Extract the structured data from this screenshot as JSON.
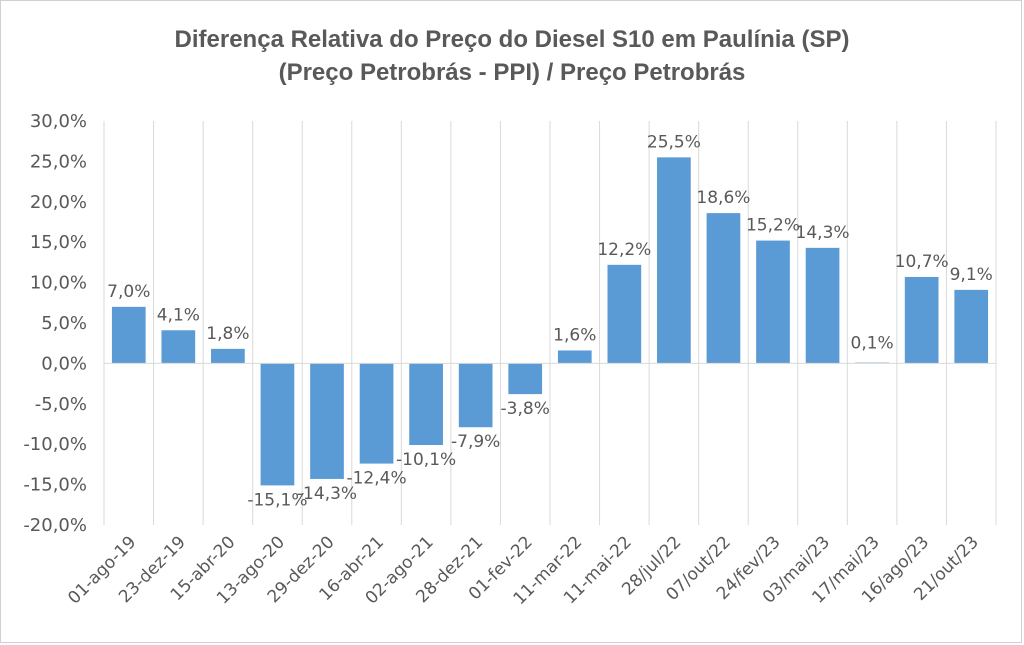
{
  "chart_data": {
    "type": "bar",
    "title": "Diferença Relativa do Preço do Diesel S10 em Paulínia (SP)",
    "subtitle": "(Preço Petrobrás - PPI) / Preço Petrobrás",
    "xlabel": "",
    "ylabel": "",
    "ylim": [
      -20,
      30
    ],
    "ytick_step": 5,
    "grid": "vertical",
    "legend": "none",
    "bar_color": "#5b9bd5",
    "categories": [
      "01-ago-19",
      "23-dez-19",
      "15-abr-20",
      "13-ago-20",
      "29-dez-20",
      "16-abr-21",
      "02-ago-21",
      "28-dez-21",
      "01-fev-22",
      "11-mar-22",
      "11-mai-22",
      "28/jul/22",
      "07/out/22",
      "24/fev/23",
      "03/mai/23",
      "17/mai/23",
      "16/ago/23",
      "21/out/23"
    ],
    "values": [
      7.0,
      4.1,
      1.8,
      -15.1,
      -14.3,
      -12.4,
      -10.1,
      -7.9,
      -3.8,
      1.6,
      12.2,
      25.5,
      18.6,
      15.2,
      14.3,
      0.1,
      10.7,
      9.1
    ],
    "data_labels": [
      "7,0%",
      "4,1%",
      "1,8%",
      "-15,1%",
      "-14,3%",
      "-12,4%",
      "-10,1%",
      "-7,9%",
      "-3,8%",
      "1,6%",
      "12,2%",
      "25,5%",
      "18,6%",
      "15,2%",
      "14,3%",
      "0,1%",
      "10,7%",
      "9,1%"
    ],
    "ytick_labels": [
      "30,0%",
      "25,0%",
      "20,0%",
      "15,0%",
      "10,0%",
      "5,0%",
      "0,0%",
      "-5,0%",
      "-10,0%",
      "-15,0%",
      "-20,0%"
    ]
  }
}
